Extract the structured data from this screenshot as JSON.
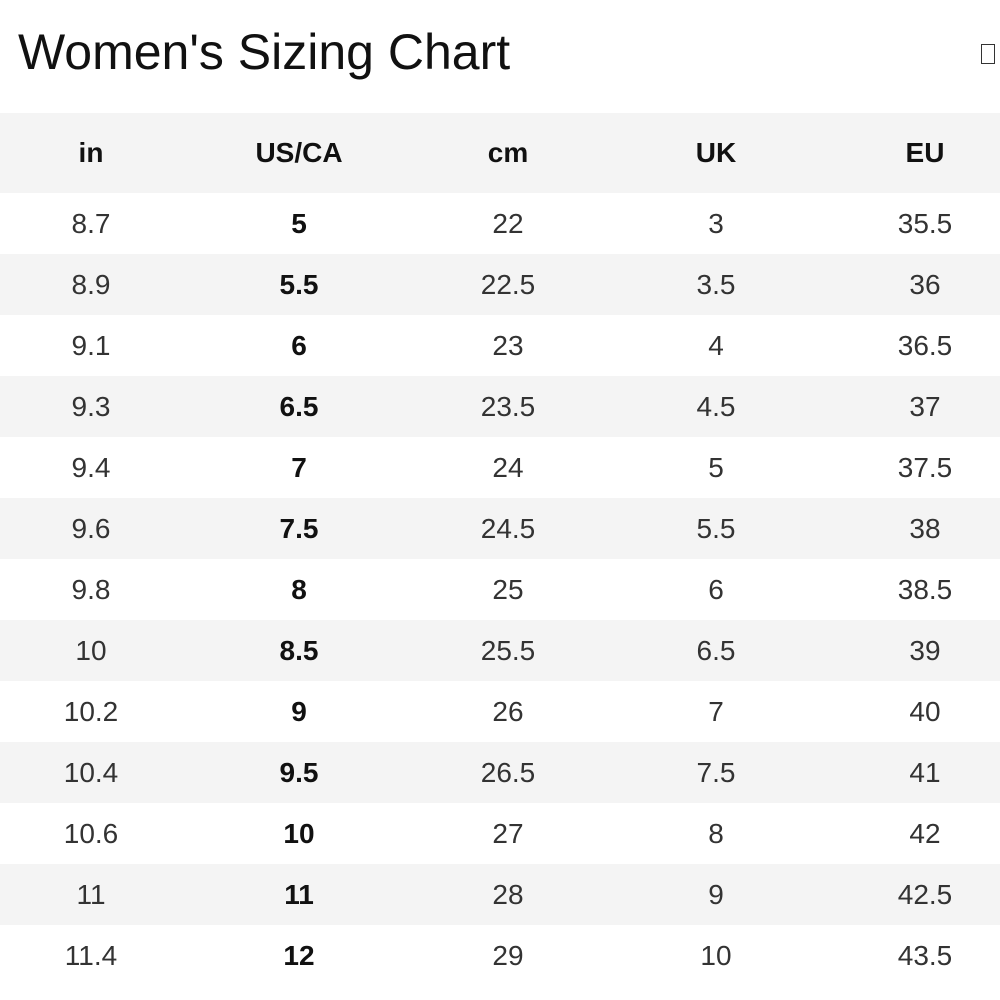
{
  "header": {
    "title": "Women's Sizing Chart"
  },
  "table": {
    "columns": [
      "in",
      "US/CA",
      "cm",
      "UK",
      "EU"
    ],
    "rows": [
      [
        "8.7",
        "5",
        "22",
        "3",
        "35.5"
      ],
      [
        "8.9",
        "5.5",
        "22.5",
        "3.5",
        "36"
      ],
      [
        "9.1",
        "6",
        "23",
        "4",
        "36.5"
      ],
      [
        "9.3",
        "6.5",
        "23.5",
        "4.5",
        "37"
      ],
      [
        "9.4",
        "7",
        "24",
        "5",
        "37.5"
      ],
      [
        "9.6",
        "7.5",
        "24.5",
        "5.5",
        "38"
      ],
      [
        "9.8",
        "8",
        "25",
        "6",
        "38.5"
      ],
      [
        "10",
        "8.5",
        "25.5",
        "6.5",
        "39"
      ],
      [
        "10.2",
        "9",
        "26",
        "7",
        "40"
      ],
      [
        "10.4",
        "9.5",
        "26.5",
        "7.5",
        "41"
      ],
      [
        "10.6",
        "10",
        "27",
        "8",
        "42"
      ],
      [
        "11",
        "11",
        "28",
        "9",
        "42.5"
      ],
      [
        "11.4",
        "12",
        "29",
        "10",
        "43.5"
      ]
    ]
  }
}
